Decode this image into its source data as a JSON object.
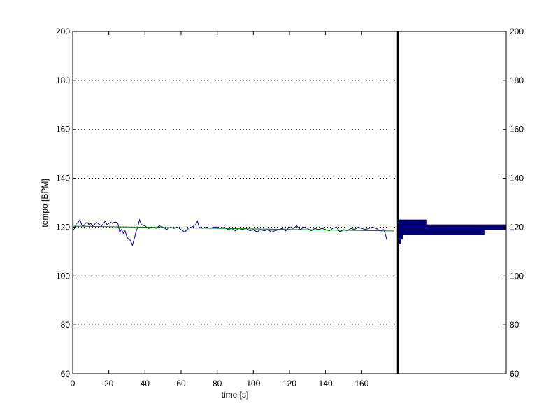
{
  "chart_data": {
    "type": "line",
    "xlabel": "time [s]",
    "ylabel": "tempo [BPM]",
    "xlim": [
      0,
      180
    ],
    "ylim": [
      60,
      200
    ],
    "xticks": [
      0,
      20,
      40,
      60,
      80,
      100,
      120,
      140,
      160
    ],
    "yticks": [
      60,
      80,
      100,
      120,
      140,
      160,
      180,
      200
    ],
    "grid": "horizontal dotted lines at 80-180",
    "colors": {
      "tempo": "#00008B",
      "fit": "#008000",
      "histogram": "#000080"
    },
    "series": [
      {
        "x": [
          0,
          1,
          2,
          3,
          4,
          5,
          6,
          7,
          8,
          9,
          10,
          11,
          12,
          13,
          14,
          15,
          16,
          17,
          18,
          19,
          20,
          21,
          22,
          23,
          24,
          25,
          26,
          27,
          28,
          29,
          30,
          31,
          32,
          33,
          34,
          35,
          36,
          37,
          38,
          40,
          42,
          44,
          46,
          48,
          50,
          52,
          54,
          56,
          58,
          60,
          62,
          64,
          66,
          68,
          69,
          70,
          72,
          74,
          76,
          78,
          80,
          82,
          84,
          86,
          88,
          90,
          92,
          94,
          96,
          98,
          100,
          102,
          104,
          106,
          108,
          110,
          112,
          114,
          116,
          118,
          120,
          122,
          124,
          126,
          128,
          130,
          132,
          134,
          136,
          138,
          140,
          142,
          144,
          146,
          148,
          150,
          152,
          154,
          156,
          158,
          160,
          162,
          164,
          166,
          168,
          170,
          172,
          173,
          174
        ],
        "values": [
          118.5,
          119.5,
          121.5,
          122,
          123,
          121,
          120.5,
          121.5,
          122,
          121,
          121.5,
          120.5,
          121,
          122,
          121.5,
          121,
          120.5,
          121.5,
          122.5,
          121,
          121.5,
          122,
          121.5,
          122,
          122,
          121.5,
          118,
          119,
          117.5,
          118.5,
          116,
          115,
          114.5,
          112.5,
          115,
          118,
          120,
          123,
          121,
          120.5,
          119.5,
          120,
          119.5,
          120.5,
          120,
          119,
          120,
          119.5,
          120,
          119,
          118,
          119.5,
          120,
          121,
          122.5,
          120,
          119.5,
          120,
          119.5,
          120,
          120,
          119.5,
          120,
          119,
          119.5,
          118.5,
          119.5,
          119,
          119.5,
          118.5,
          119,
          118,
          119,
          118.5,
          119,
          118,
          118.5,
          119,
          119.5,
          118.5,
          120,
          119.5,
          120.5,
          119,
          120,
          119.5,
          118.5,
          119.5,
          119,
          119.5,
          119,
          118.5,
          119.5,
          120,
          118,
          119,
          118.5,
          119.5,
          119,
          120,
          119.5,
          119,
          119.5,
          120,
          119.5,
          118.5,
          119,
          117.5,
          114.5
        ]
      },
      {
        "x": [
          0,
          178
        ],
        "values": [
          120.4,
          118.4
        ]
      }
    ],
    "histogram": {
      "orientation": "horizontal",
      "bins": [
        {
          "from": 108,
          "to": 110,
          "count": 0
        },
        {
          "from": 110,
          "to": 111,
          "count": 0.3
        },
        {
          "from": 111,
          "to": 113,
          "count": 0.6
        },
        {
          "from": 113,
          "to": 115,
          "count": 1.5
        },
        {
          "from": 115,
          "to": 117,
          "count": 2.5
        },
        {
          "from": 117,
          "to": 119,
          "count": 45
        },
        {
          "from": 119,
          "to": 121,
          "count": 56
        },
        {
          "from": 121,
          "to": 123,
          "count": 15
        },
        {
          "from": 123,
          "to": 125,
          "count": 0
        }
      ],
      "ylim": [
        60,
        200
      ],
      "countlim": [
        0,
        56
      ]
    }
  }
}
